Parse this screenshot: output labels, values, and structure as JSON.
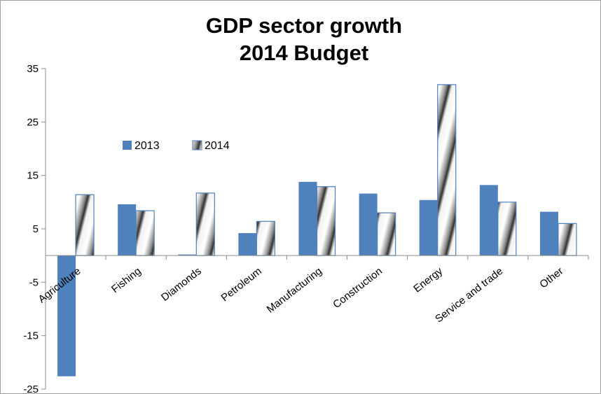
{
  "chart_data": {
    "type": "bar",
    "title": [
      "GDP sector growth",
      "2014 Budget"
    ],
    "xlabel": "",
    "ylabel": "",
    "ylim": [
      -25,
      35
    ],
    "yticks": [
      -25,
      -15,
      -5,
      5,
      15,
      25,
      35
    ],
    "grid": false,
    "legend_position": "upper-left",
    "categories": [
      "Agriculture",
      "Fishing",
      "Diamonds",
      "Petroleum",
      "Manufacturing",
      "Construction",
      "Energy",
      "Service and trade",
      "Other"
    ],
    "series": [
      {
        "name": "2013",
        "color": "#4f81bd",
        "pattern": "solid",
        "values": [
          -22.6,
          9.6,
          0.2,
          4.2,
          13.8,
          11.6,
          10.4,
          13.2,
          8.2
        ]
      },
      {
        "name": "2014",
        "color": "#bfbfbf",
        "pattern": "diagonal-gradient",
        "values": [
          11.4,
          8.4,
          11.7,
          6.4,
          12.9,
          8.0,
          32.0,
          10.0,
          6.0
        ]
      }
    ]
  }
}
